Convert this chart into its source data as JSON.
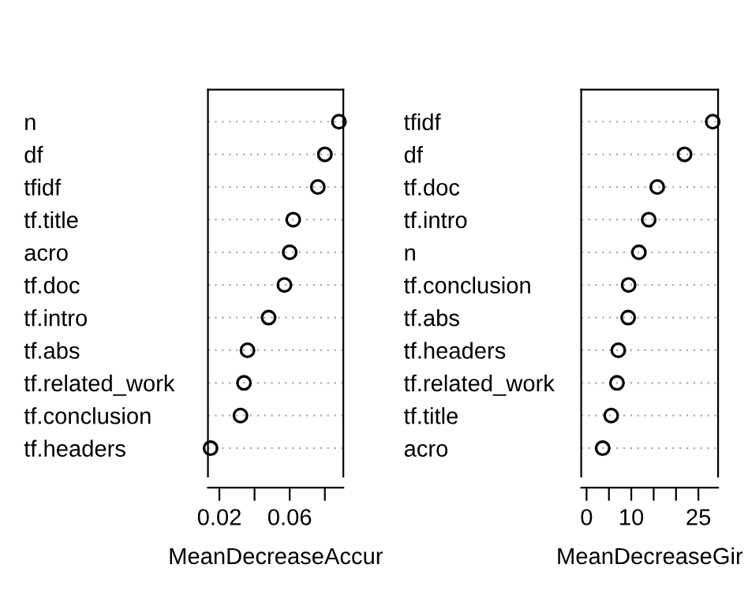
{
  "chart_data": [
    {
      "type": "scatter",
      "orientation": "horizontal",
      "xlabel": "MeanDecreaseAccur",
      "categories": [
        "n",
        "df",
        "tfidf",
        "tf.title",
        "acro",
        "tf.doc",
        "tf.intro",
        "tf.abs",
        "tf.related_work",
        "tf.conclusion",
        "tf.headers"
      ],
      "series": [
        {
          "color": "#000000",
          "values": [
            0.088,
            0.08,
            0.076,
            0.062,
            0.06,
            0.057,
            0.048,
            0.036,
            0.034,
            0.032,
            0.015
          ]
        }
      ],
      "xlim": [
        0.0135,
        0.0905
      ],
      "xticks": [
        0.02,
        {
          "value": 0.04,
          "label": null
        },
        0.06,
        {
          "value": 0.08,
          "label": null
        }
      ],
      "grid": "y",
      "marker": "circle",
      "legend": false
    },
    {
      "type": "scatter",
      "orientation": "horizontal",
      "xlabel": "MeanDecreaseGir",
      "categories": [
        "tfidf",
        "df",
        "tf.doc",
        "tf.intro",
        "n",
        "tf.conclusion",
        "tf.abs",
        "tf.headers",
        "tf.related_work",
        "tf.title",
        "acro"
      ],
      "series": [
        {
          "color": "#000000",
          "values": [
            28.2,
            21.9,
            15.8,
            13.9,
            11.7,
            9.4,
            9.3,
            7.1,
            6.8,
            5.5,
            3.6
          ]
        }
      ],
      "xlim": [
        -1.2,
        29.4
      ],
      "xticks": [
        0,
        {
          "value": 5,
          "label": null
        },
        10,
        {
          "value": 15,
          "label": null
        },
        {
          "value": 20,
          "label": null
        },
        25
      ],
      "grid": "y",
      "marker": "circle",
      "legend": false
    }
  ]
}
